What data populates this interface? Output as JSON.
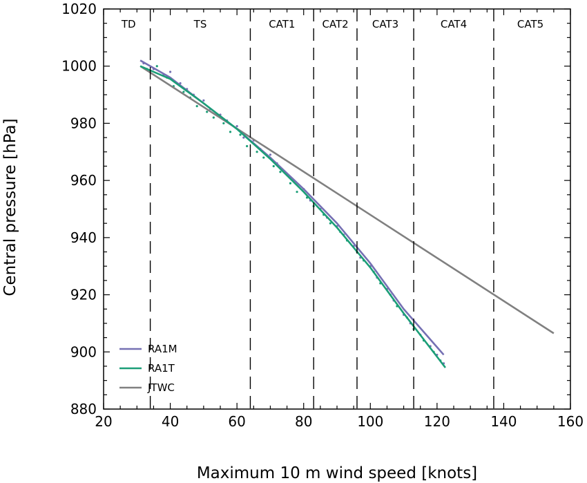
{
  "chart_data": {
    "type": "scatter",
    "title": "",
    "xlabel": "Maximum 10 m wind speed [knots]",
    "ylabel": "Central pressure [hPa]",
    "xlim": [
      20,
      160
    ],
    "ylim": [
      880,
      1020
    ],
    "xticks": [
      20,
      40,
      60,
      80,
      100,
      120,
      140,
      160
    ],
    "yticks": [
      880,
      900,
      920,
      940,
      960,
      980,
      1000,
      1020
    ],
    "grid": false,
    "legend_position": "bottom-left",
    "categories": [
      {
        "label": "TD",
        "x_center": 27.5
      },
      {
        "label": "TS",
        "x_center": 49
      },
      {
        "label": "CAT1",
        "x_center": 73.5
      },
      {
        "label": "CAT2",
        "x_center": 89.5
      },
      {
        "label": "CAT3",
        "x_center": 104.5
      },
      {
        "label": "CAT4",
        "x_center": 125
      },
      {
        "label": "CAT5",
        "x_center": 148
      }
    ],
    "category_boundaries": [
      34,
      64,
      83,
      96,
      113,
      137
    ],
    "series": [
      {
        "name": "RA1M",
        "kind": "line",
        "color": "#7570b3",
        "x": [
          31,
          40,
          50,
          60,
          70,
          80,
          90,
          100,
          110,
          122
        ],
        "y": [
          1002,
          996,
          987,
          978,
          968,
          957,
          945,
          931,
          915,
          899
        ]
      },
      {
        "name": "RA1T",
        "kind": "line",
        "color": "#1b9e77",
        "x": [
          31,
          40,
          50,
          60,
          70,
          80,
          90,
          100,
          110,
          122.5
        ],
        "y": [
          1000,
          995.5,
          987,
          978,
          967.5,
          956,
          943.5,
          929.5,
          913.5,
          894.5
        ]
      },
      {
        "name": "JTWC",
        "kind": "line",
        "color": "#808080",
        "x": [
          31,
          155
        ],
        "y": [
          1000,
          906.5
        ]
      },
      {
        "name": "RA1M points",
        "kind": "scatter",
        "color": "#7570b3",
        "x": [
          32,
          35,
          38,
          40,
          43,
          45,
          47,
          50,
          52,
          55,
          57,
          60,
          62,
          65,
          67,
          70,
          72,
          75,
          77,
          80,
          82,
          85,
          87,
          90,
          92,
          95,
          97,
          100,
          102,
          105,
          107,
          110,
          112,
          115,
          118,
          120,
          122
        ],
        "y": [
          1001,
          999,
          997,
          998,
          994,
          992,
          990,
          988,
          985,
          983,
          981,
          979,
          975,
          974,
          971,
          969,
          966,
          962,
          960,
          957,
          953,
          950,
          947,
          944,
          941,
          937,
          933,
          930,
          926,
          922,
          918,
          913,
          910,
          906,
          902,
          899,
          896
        ]
      },
      {
        "name": "RA1T points",
        "kind": "scatter",
        "color": "#1b9e77",
        "x": [
          33,
          36,
          39,
          41,
          44,
          46,
          48,
          51,
          53,
          56,
          58,
          61,
          63,
          66,
          68,
          71,
          73,
          76,
          78,
          81,
          83,
          86,
          88,
          91,
          93,
          96,
          98,
          101,
          103,
          106,
          108,
          111,
          113,
          116,
          119,
          121
        ],
        "y": [
          999,
          1000,
          996,
          993,
          991,
          989,
          986,
          984,
          982,
          980,
          977,
          976,
          972,
          970,
          968,
          965,
          963,
          959,
          956,
          954,
          951,
          948,
          945,
          942,
          939,
          935,
          932,
          928,
          924,
          920,
          916,
          912,
          908,
          904,
          900,
          897
        ]
      }
    ],
    "legend": [
      "RA1M",
      "RA1T",
      "JTWC"
    ]
  }
}
